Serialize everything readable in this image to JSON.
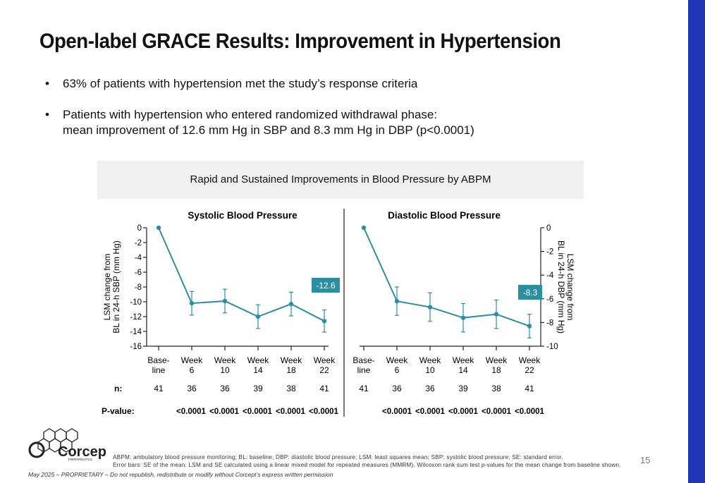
{
  "slide": {
    "title": "Open-label GRACE Results: Improvement in Hypertension",
    "accent_color": "#2038b8",
    "page_number": "15"
  },
  "bullets": [
    {
      "lines": [
        "63% of patients with hypertension met the study’s response criteria"
      ]
    },
    {
      "lines": [
        "Patients with hypertension who entered randomized withdrawal phase:",
        "mean improvement of 12.6 mm Hg in SBP and 8.3 mm Hg in DBP (p<0.0001)"
      ]
    }
  ],
  "panel": {
    "header": "Rapid and Sustained Improvements in Blood Pressure by ABPM"
  },
  "chart_data": [
    {
      "type": "line",
      "title": "Systolic Blood Pressure",
      "ylabel": [
        "LSM change from",
        "BL in 24-h SBP (mm Hg)"
      ],
      "ylim": [
        -16,
        0
      ],
      "yticks": [
        0,
        -2,
        -4,
        -6,
        -8,
        -10,
        -12,
        -14,
        -16
      ],
      "categories": [
        [
          "Base-",
          "line"
        ],
        [
          "Week",
          "6"
        ],
        [
          "Week",
          "10"
        ],
        [
          "Week",
          "14"
        ],
        [
          "Week",
          "18"
        ],
        [
          "Week",
          "22"
        ]
      ],
      "values": [
        0,
        -10.2,
        -9.9,
        -12.0,
        -10.3,
        -12.6
      ],
      "error": [
        0,
        1.6,
        1.6,
        1.6,
        1.6,
        1.5
      ],
      "n": [
        "41",
        "36",
        "36",
        "39",
        "38",
        "41"
      ],
      "p_values": [
        "",
        "<0.0001",
        "<0.0001",
        "<0.0001",
        "<0.0001",
        "<0.0001"
      ],
      "callout": "-12.6",
      "color": "#2a8fa0"
    },
    {
      "type": "line",
      "title": "Diastolic Blood Pressure",
      "ylabel": [
        "LSM change from",
        "BL in 24-h DBP (mm Hg)"
      ],
      "ylim": [
        -10,
        0
      ],
      "yticks": [
        0,
        -2,
        -4,
        -6,
        -8,
        -10
      ],
      "categories": [
        [
          "Base-",
          "line"
        ],
        [
          "Week",
          "6"
        ],
        [
          "Week",
          "10"
        ],
        [
          "Week",
          "14"
        ],
        [
          "Week",
          "18"
        ],
        [
          "Week",
          "22"
        ]
      ],
      "values": [
        0,
        -6.2,
        -6.7,
        -7.6,
        -7.3,
        -8.3
      ],
      "error": [
        0,
        1.2,
        1.2,
        1.2,
        1.2,
        1.0
      ],
      "n": [
        "41",
        "36",
        "36",
        "39",
        "38",
        "41"
      ],
      "p_values": [
        "",
        "<0.0001",
        "<0.0001",
        "<0.0001",
        "<0.0001",
        "<0.0001"
      ],
      "callout": "-8.3",
      "color": "#2a8fa0"
    }
  ],
  "row_labels": {
    "n": "n:",
    "p": "P-value:"
  },
  "logo": {
    "name": "Corcept",
    "sub": "THERAPEUTICS"
  },
  "footnote": [
    "ABPM: ambulatory blood pressure monitoring; BL: baseline; DBP: diastolic blood pressure; LSM: least squares mean; SBP: systolic blood pressure; SE: standard error.",
    "Error bars: SE of the mean. LSM and SE calculated using a linear mixed model for repeated measures (MMRM). Wilcoxon rank sum test p-values for the mean change from baseline shown."
  ],
  "disclaimer": "May 2025 – PROPRIETARY – Do not republish, redistribute or modify without Corcept’s express written permission"
}
